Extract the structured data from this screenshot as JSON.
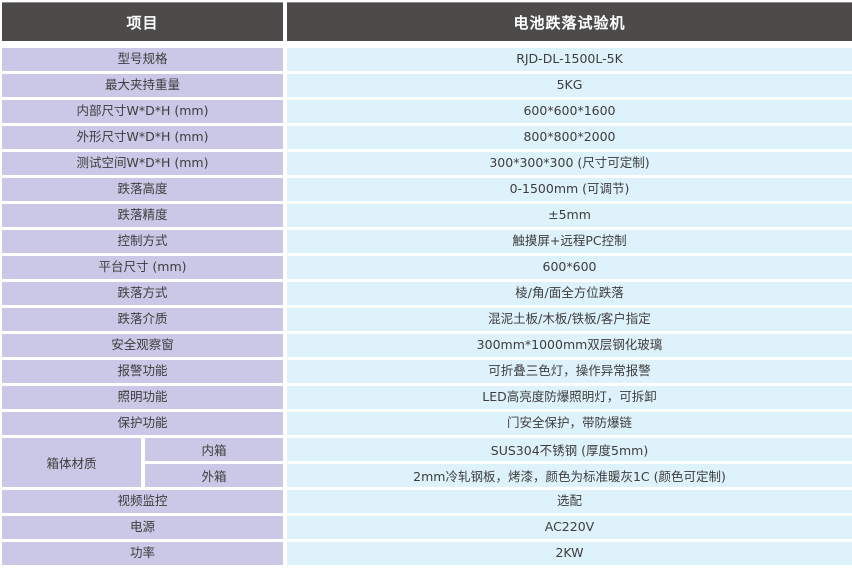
{
  "header": {
    "item_column_title": "项目",
    "product_column_title": "电池跌落试验机"
  },
  "rows": [
    {
      "label": "型号规格",
      "value": "RJD-DL-1500L-5K"
    },
    {
      "label": "最大夹持重量",
      "value": "5KG"
    },
    {
      "label": "内部尺寸W*D*H (mm)",
      "value": "600*600*1600"
    },
    {
      "label": "外形尺寸W*D*H (mm)",
      "value": "800*800*2000"
    },
    {
      "label": "测试空间W*D*H (mm)",
      "value": "300*300*300 (尺寸可定制)"
    },
    {
      "label": "跌落高度",
      "value": "0-1500mm (可调节)"
    },
    {
      "label": "跌落精度",
      "value": "±5mm"
    },
    {
      "label": "控制方式",
      "value": "触摸屏+远程PC控制"
    },
    {
      "label": "平台尺寸 (mm)",
      "value": "600*600"
    },
    {
      "label": "跌落方式",
      "value": "棱/角/面全方位跌落"
    },
    {
      "label": "跌落介质",
      "value": "混泥土板/木板/铁板/客户指定"
    },
    {
      "label": "安全观察窗",
      "value": "300mm*1000mm双层钢化玻璃"
    },
    {
      "label": "报警功能",
      "value": "可折叠三色灯，操作异常报警"
    },
    {
      "label": "照明功能",
      "value": "LED高亮度防爆照明灯，可拆卸"
    },
    {
      "label": "保护功能",
      "value": "门安全保护，带防爆链"
    }
  ],
  "material_group": {
    "label": "箱体材质",
    "sub_rows": [
      {
        "label": "内箱",
        "value": "SUS304不锈钢 (厚度5mm)"
      },
      {
        "label": "外箱",
        "value": "2mm冷轧钢板，烤漆，颜色为标准暖灰1C (颜色可定制)"
      }
    ]
  },
  "bottom_rows": [
    {
      "label": "视频监控",
      "value": "选配"
    },
    {
      "label": "电源",
      "value": "AC220V"
    },
    {
      "label": "功率",
      "value": "2KW"
    }
  ],
  "colors": {
    "header_bg": "#4d4a4a",
    "header_text": "#ffffff",
    "label_cell_bg": "#cac8e6",
    "value_cell_bg": "#def2fb",
    "body_text": "#3d3d3d",
    "gap": "#ffffff"
  }
}
